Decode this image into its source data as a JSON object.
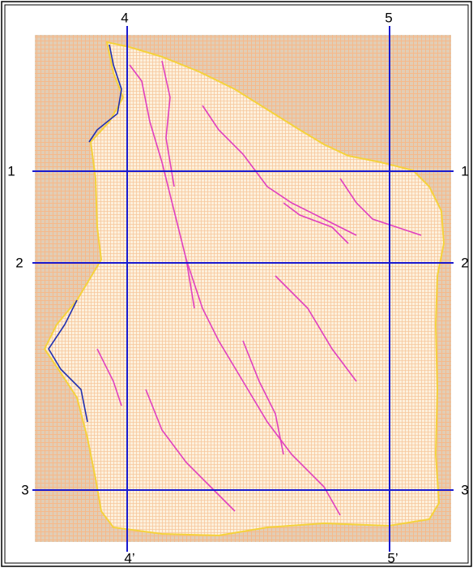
{
  "horizontal_lines": [
    {
      "left": "1",
      "right": "1"
    },
    {
      "left": "2",
      "right": "2"
    },
    {
      "left": "3",
      "right": "3"
    }
  ],
  "vertical_lines": [
    {
      "top": "4",
      "bottom": "4’"
    },
    {
      "top": "5",
      "bottom": "5’"
    }
  ]
}
